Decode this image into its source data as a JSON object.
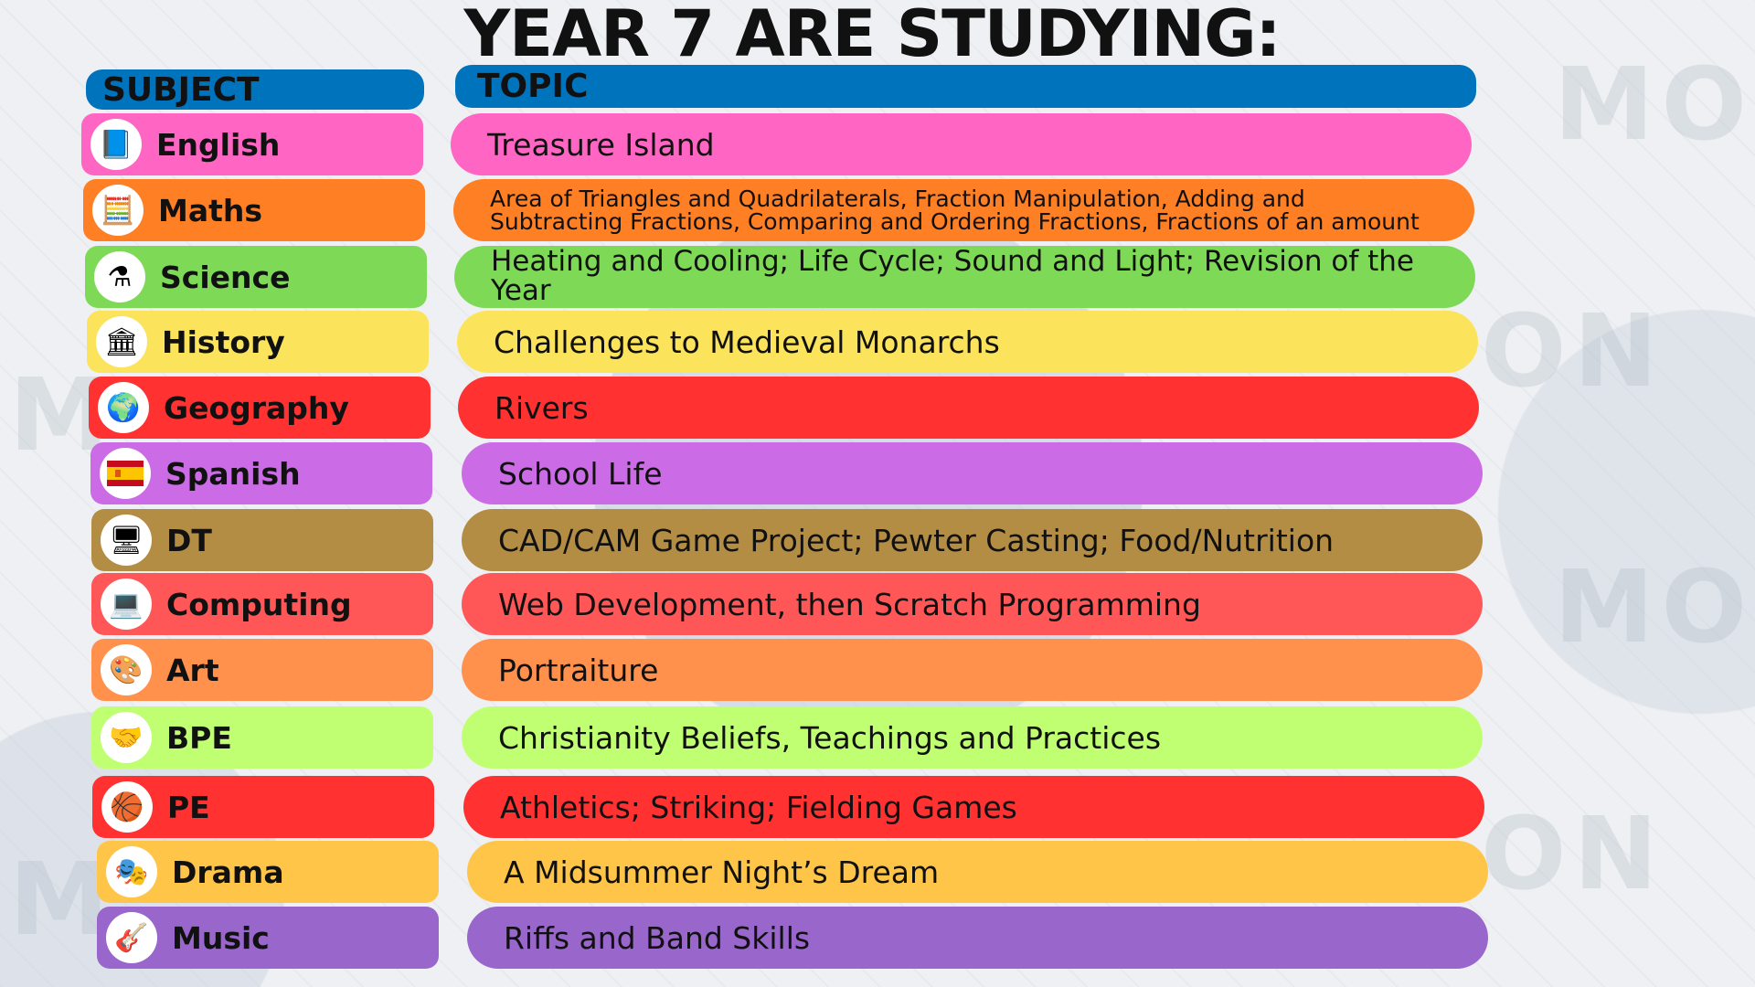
{
  "title": "YEAR 7 ARE STUDYING:",
  "headers": {
    "subject": "SUBJECT",
    "topic": "TOPIC"
  },
  "rows": [
    {
      "subject": "English",
      "topic": "Treasure Island",
      "color": "#ff66c4",
      "icon": "book-icon",
      "glyph": "📘"
    },
    {
      "subject": "Maths",
      "topic": "Area of Triangles and Quadrilaterals, Fraction Manipulation, Adding and Subtracting Fractions, Comparing and Ordering Fractions, Fractions of an amount",
      "color": "#ff7f24",
      "icon": "calculator-icon",
      "glyph": "🧮"
    },
    {
      "subject": "Science",
      "topic": "Heating and Cooling; Life Cycle; Sound and Light; Revision of the Year",
      "color": "#7ed957",
      "icon": "flask-icon",
      "glyph": "⚗"
    },
    {
      "subject": "History",
      "topic": "Challenges to Medieval Monarchs",
      "color": "#fbe45b",
      "icon": "ancient-map-icon",
      "glyph": "🏛"
    },
    {
      "subject": "Geography",
      "topic": "Rivers",
      "color": "#ff3131",
      "icon": "globe-icon",
      "glyph": "🌍"
    },
    {
      "subject": "Spanish",
      "topic": "School Life",
      "color": "#cb6ce6",
      "icon": "spain-flag-icon",
      "glyph": ""
    },
    {
      "subject": "DT",
      "topic": "CAD/CAM Game Project; Pewter Casting; Food/Nutrition",
      "color": "#b48d45",
      "icon": "design-screen-icon",
      "glyph": "🖥"
    },
    {
      "subject": "Computing",
      "topic": "Web Development, then Scratch Programming",
      "color": "#ff5757",
      "icon": "laptop-icon",
      "glyph": "💻"
    },
    {
      "subject": "Art",
      "topic": "Portraiture",
      "color": "#ff914d",
      "icon": "palette-icon",
      "glyph": "🎨"
    },
    {
      "subject": "BPE",
      "topic": "Christianity Beliefs, Teachings and Practices",
      "color": "#c1ff72",
      "icon": "hands-icon",
      "glyph": "🤝"
    },
    {
      "subject": "PE",
      "topic": "Athletics; Striking; Fielding Games",
      "color": "#ff3131",
      "icon": "sports-ball-icon",
      "glyph": "🏀"
    },
    {
      "subject": "Drama",
      "topic": "A Midsummer Night’s Dream",
      "color": "#ffc548",
      "icon": "theatre-masks-icon",
      "glyph": "🎭"
    },
    {
      "subject": "Music",
      "topic": "Riffs and Band Skills",
      "color": "#9966cc",
      "icon": "guitar-icon",
      "glyph": "🎸"
    }
  ]
}
